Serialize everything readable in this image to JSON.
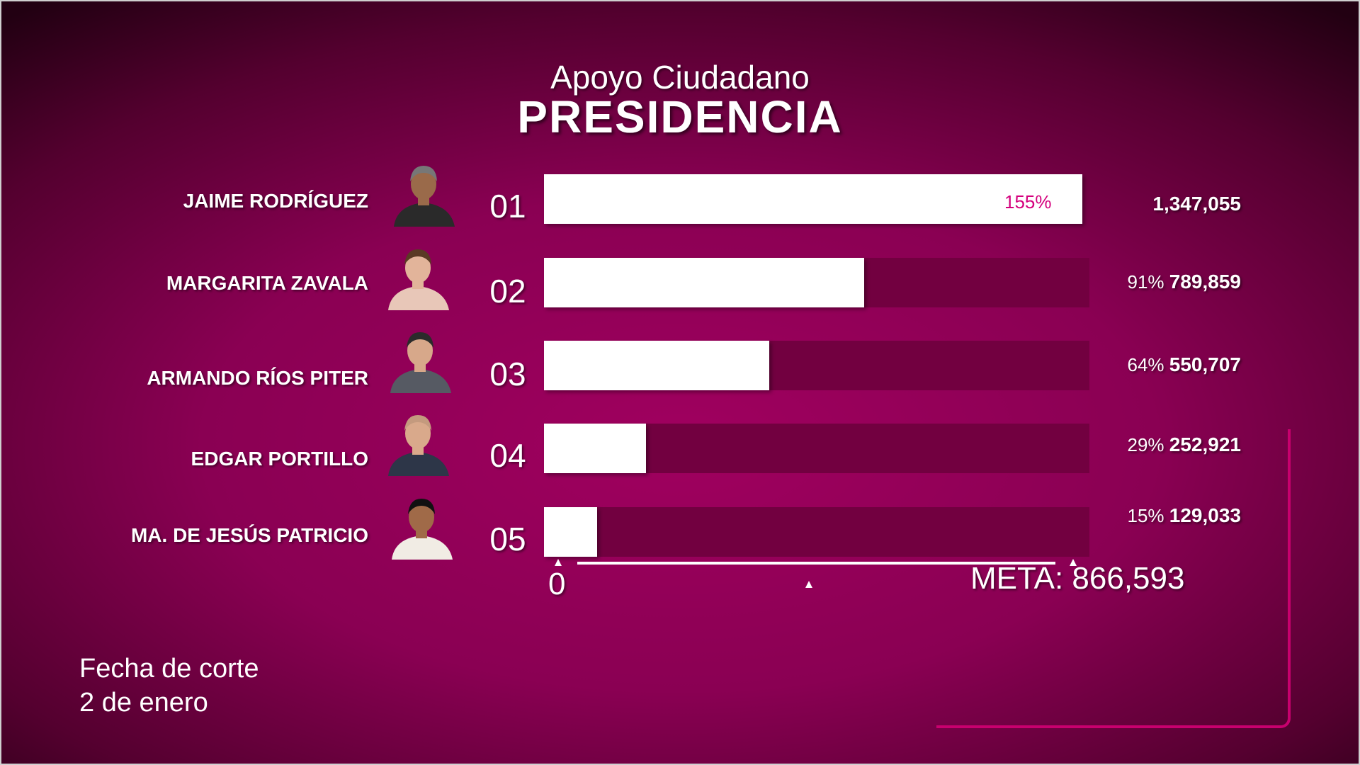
{
  "title": "Apoyo Ciudadano",
  "subtitle": "PRESIDENCIA",
  "cutoff": {
    "label": "Fecha de corte",
    "date": "2 de enero"
  },
  "colors": {
    "background": "#8a0053",
    "bar_track": "#720040",
    "bar_fill": "#ffffff",
    "inner_label": "#d4007d",
    "accent_line": "#c8006e"
  },
  "chart_data": {
    "type": "bar",
    "orientation": "horizontal",
    "title": "Apoyo Ciudadano",
    "subtitle": "PRESIDENCIA",
    "goal_value": 866593,
    "goal_label": "META: 866,593",
    "axis_min_label": "0",
    "xlim": [
      0,
      866593
    ],
    "categories": [
      "JAIME RODRÍGUEZ",
      "MARGARITA ZAVALA",
      "ARMANDO RÍOS PITER",
      "EDGAR PORTILLO",
      "MA. DE JESÚS PATRICIO"
    ],
    "rows": [
      {
        "num": "01",
        "name": "JAIME RODRÍGUEZ",
        "value": 1347055,
        "value_label": "1,347,055",
        "pct": 155,
        "pct_label": "155%",
        "pct_inside": true,
        "photo": "man-gray-hair-portrait"
      },
      {
        "num": "02",
        "name": "MARGARITA ZAVALA",
        "value": 789859,
        "value_label": "789,859",
        "pct": 91,
        "pct_label": "91%",
        "pct_inside": false,
        "photo": "woman-smiling-portrait"
      },
      {
        "num": "03",
        "name": "ARMANDO RÍOS PITER",
        "value": 550707,
        "value_label": "550,707",
        "pct": 64,
        "pct_label": "64%",
        "pct_inside": false,
        "photo": "man-glasses-suit-portrait"
      },
      {
        "num": "04",
        "name": "EDGAR PORTILLO",
        "value": 252921,
        "value_label": "252,921",
        "pct": 29,
        "pct_label": "29%",
        "pct_inside": false,
        "photo": "man-bald-smiling-portrait"
      },
      {
        "num": "05",
        "name": "MA. DE JESÚS PATRICIO",
        "value": 129033,
        "value_label": "129,033",
        "pct": 15,
        "pct_label": "15%",
        "pct_inside": false,
        "photo": "woman-embroidered-blouse-portrait"
      }
    ]
  }
}
